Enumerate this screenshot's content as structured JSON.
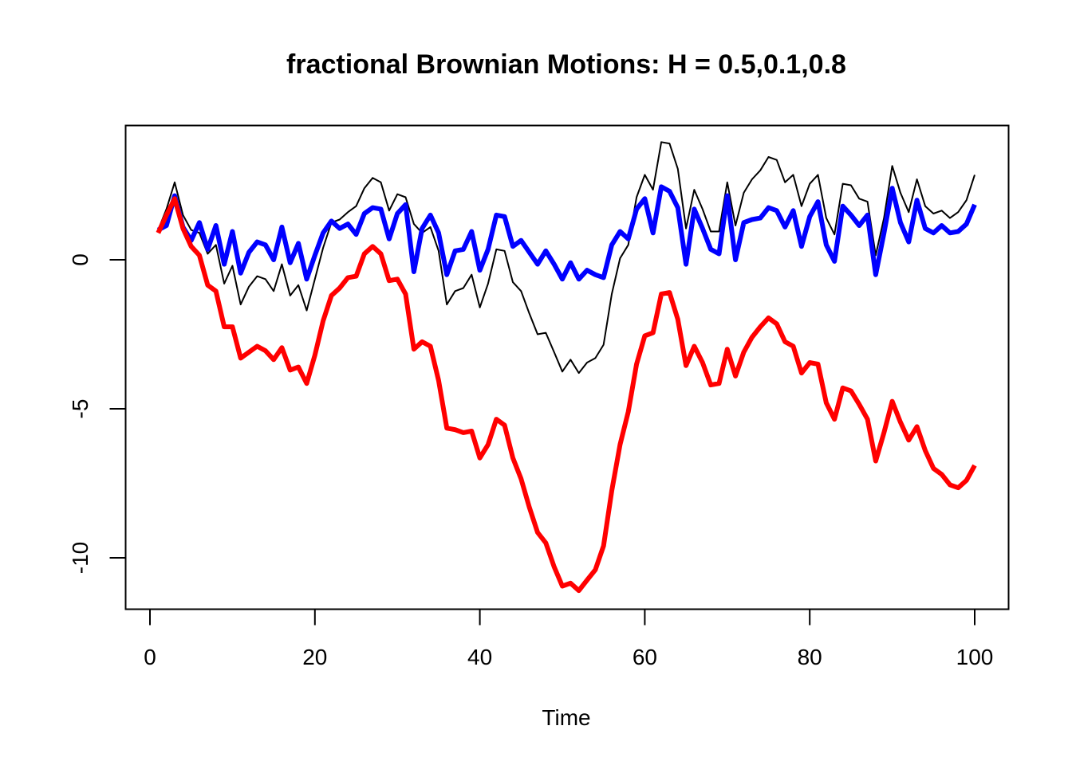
{
  "chart_data": {
    "type": "line",
    "title": "fractional Brownian Motions: H = 0.5,0.1,0.8",
    "xlabel": "Time",
    "ylabel": "",
    "xlim": [
      0,
      100
    ],
    "ylim": [
      -11.5,
      4.5
    ],
    "x_ticks": [
      0,
      20,
      40,
      60,
      80,
      100
    ],
    "x_tick_labels": [
      "0",
      "20",
      "40",
      "60",
      "80",
      "100"
    ],
    "y_ticks": [
      0,
      -5,
      -10
    ],
    "y_tick_labels": [
      "0",
      "-5",
      "-10"
    ],
    "grid": false,
    "legend": "none",
    "x": [
      1,
      2,
      3,
      4,
      5,
      6,
      7,
      8,
      9,
      10,
      11,
      12,
      13,
      14,
      15,
      16,
      17,
      18,
      19,
      20,
      21,
      22,
      23,
      24,
      25,
      26,
      27,
      28,
      29,
      30,
      31,
      32,
      33,
      34,
      35,
      36,
      37,
      38,
      39,
      40,
      41,
      42,
      43,
      44,
      45,
      46,
      47,
      48,
      49,
      50,
      51,
      52,
      53,
      54,
      55,
      56,
      57,
      58,
      59,
      60,
      61,
      62,
      63,
      64,
      65,
      66,
      67,
      68,
      69,
      70,
      71,
      72,
      73,
      74,
      75,
      76,
      77,
      78,
      79,
      80,
      81,
      82,
      83,
      84,
      85,
      86,
      87,
      88,
      89,
      90,
      91,
      92,
      93,
      94,
      95,
      96,
      97,
      98,
      99,
      100
    ],
    "series": [
      {
        "color": "#000000",
        "line_width": 2,
        "values": [
          1.0,
          1.7,
          2.6,
          1.5,
          1.0,
          0.9,
          0.2,
          0.5,
          -0.8,
          -0.2,
          -1.5,
          -0.9,
          -0.55,
          -0.65,
          -1.05,
          -0.15,
          -1.2,
          -0.85,
          -1.7,
          -0.65,
          0.4,
          1.25,
          1.35,
          1.6,
          1.8,
          2.4,
          2.75,
          2.6,
          1.65,
          2.2,
          2.1,
          1.2,
          0.9,
          1.1,
          0.3,
          -1.5,
          -1.05,
          -0.95,
          -0.5,
          -1.6,
          -0.8,
          0.35,
          0.3,
          -0.75,
          -1.05,
          -1.8,
          -2.5,
          -2.45,
          -3.1,
          -3.75,
          -3.35,
          -3.8,
          -3.45,
          -3.3,
          -2.85,
          -1.15,
          0.05,
          0.5,
          2.1,
          2.85,
          2.35,
          3.95,
          3.9,
          3.05,
          1.05,
          2.35,
          1.7,
          0.95,
          0.95,
          2.6,
          1.15,
          2.25,
          2.7,
          3.0,
          3.45,
          3.35,
          2.6,
          2.85,
          1.8,
          2.55,
          2.85,
          1.4,
          0.85,
          2.55,
          2.5,
          2.05,
          1.95,
          0.15,
          1.4,
          3.15,
          2.25,
          1.6,
          2.7,
          1.8,
          1.55,
          1.65,
          1.4,
          1.6,
          2.0,
          2.85
        ]
      },
      {
        "color": "#0000ff",
        "line_width": 6,
        "values": [
          1.0,
          1.15,
          2.15,
          1.1,
          0.65,
          1.25,
          0.35,
          1.15,
          -0.15,
          0.95,
          -0.45,
          0.25,
          0.6,
          0.5,
          0.0,
          1.1,
          -0.1,
          0.55,
          -0.65,
          0.15,
          0.9,
          1.3,
          1.05,
          1.2,
          0.85,
          1.55,
          1.75,
          1.7,
          0.7,
          1.55,
          1.85,
          -0.4,
          1.05,
          1.5,
          0.9,
          -0.5,
          0.3,
          0.35,
          0.95,
          -0.35,
          0.35,
          1.5,
          1.45,
          0.45,
          0.65,
          0.25,
          -0.15,
          0.3,
          -0.15,
          -0.65,
          -0.1,
          -0.65,
          -0.35,
          -0.5,
          -0.6,
          0.5,
          0.95,
          0.7,
          1.7,
          2.05,
          0.9,
          2.45,
          2.3,
          1.75,
          -0.15,
          1.7,
          1.05,
          0.35,
          0.2,
          2.15,
          0.0,
          1.25,
          1.35,
          1.4,
          1.75,
          1.65,
          1.1,
          1.65,
          0.45,
          1.45,
          1.95,
          0.5,
          -0.05,
          1.8,
          1.5,
          1.15,
          1.5,
          -0.5,
          0.9,
          2.4,
          1.25,
          0.6,
          2.0,
          1.05,
          0.9,
          1.15,
          0.9,
          0.95,
          1.2,
          1.85
        ]
      },
      {
        "color": "#ff0000",
        "line_width": 6,
        "values": [
          0.9,
          1.5,
          2.05,
          1.05,
          0.45,
          0.15,
          -0.85,
          -1.05,
          -2.25,
          -2.25,
          -3.3,
          -3.1,
          -2.9,
          -3.05,
          -3.35,
          -2.95,
          -3.7,
          -3.6,
          -4.15,
          -3.2,
          -2.05,
          -1.2,
          -0.95,
          -0.6,
          -0.55,
          0.2,
          0.45,
          0.2,
          -0.7,
          -0.65,
          -1.15,
          -3.0,
          -2.75,
          -2.9,
          -4.05,
          -5.65,
          -5.7,
          -5.8,
          -5.75,
          -6.65,
          -6.2,
          -5.35,
          -5.55,
          -6.65,
          -7.35,
          -8.3,
          -9.15,
          -9.5,
          -10.3,
          -10.95,
          -10.85,
          -11.1,
          -10.75,
          -10.4,
          -9.6,
          -7.75,
          -6.2,
          -5.1,
          -3.5,
          -2.55,
          -2.45,
          -1.15,
          -1.1,
          -2.0,
          -3.55,
          -2.9,
          -3.45,
          -4.2,
          -4.15,
          -3.0,
          -3.9,
          -3.1,
          -2.6,
          -2.25,
          -1.95,
          -2.15,
          -2.75,
          -2.9,
          -3.8,
          -3.45,
          -3.5,
          -4.8,
          -5.35,
          -4.3,
          -4.4,
          -4.85,
          -5.35,
          -6.75,
          -5.8,
          -4.75,
          -5.45,
          -6.05,
          -5.6,
          -6.4,
          -7.0,
          -7.2,
          -7.55,
          -7.65,
          -7.4,
          -6.9
        ]
      }
    ]
  }
}
